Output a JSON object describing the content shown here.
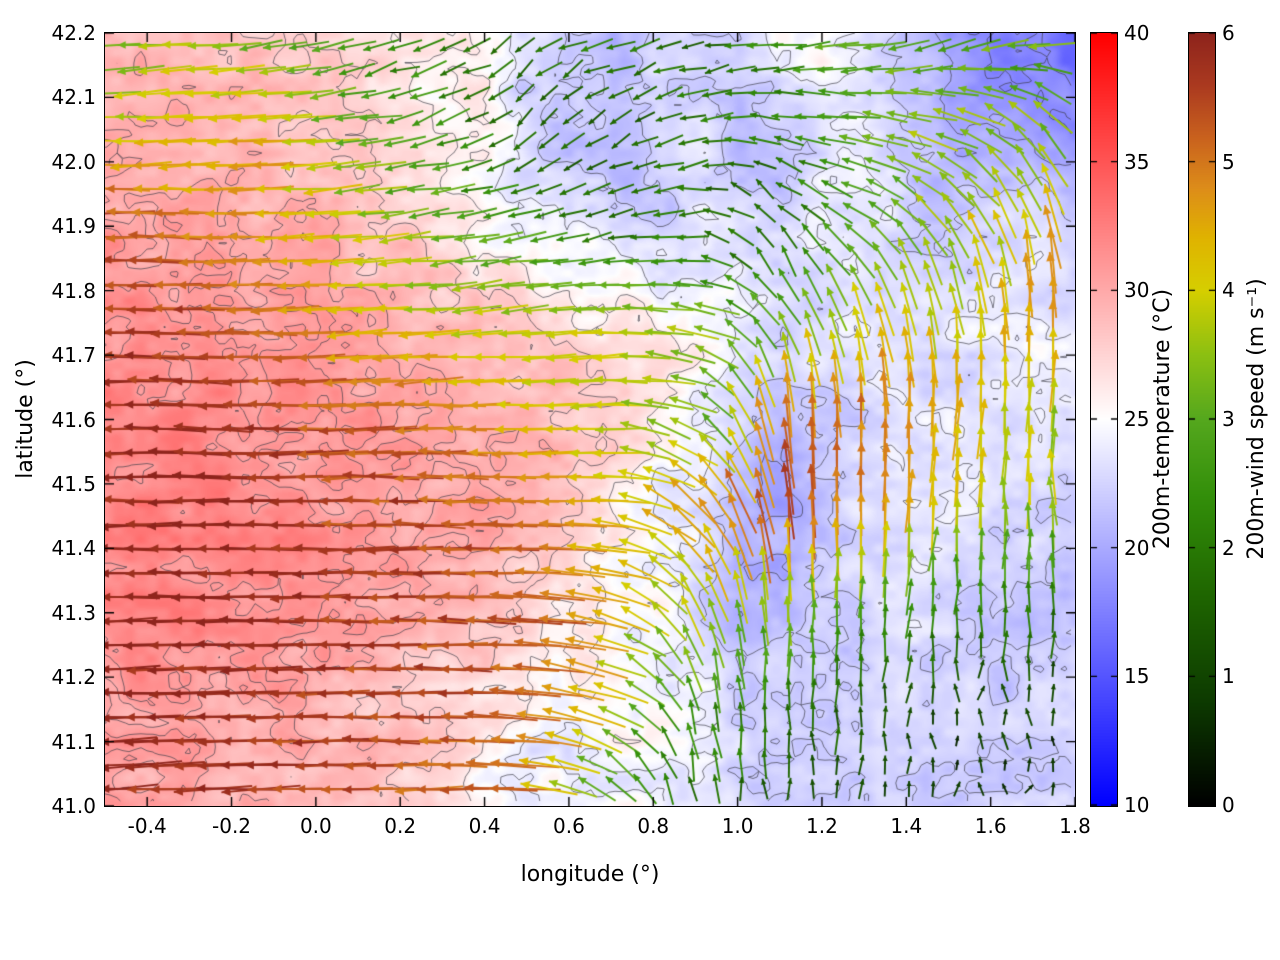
{
  "chart_data": {
    "type": "heatmap",
    "subtype": "temperature-field-with-wind-vectors-and-contours",
    "title": "",
    "xlabel": "longitude (°)",
    "ylabel": "latitude (°)",
    "xlim": [
      -0.5,
      1.8
    ],
    "ylim": [
      41.0,
      42.2
    ],
    "grid": false,
    "xtick_labels": [
      "-0.4",
      "-0.2",
      "0.0",
      "0.2",
      "0.4",
      "0.6",
      "0.8",
      "1.0",
      "1.2",
      "1.4",
      "1.6",
      "1.8"
    ],
    "ytick_labels": [
      "41.0",
      "41.1",
      "41.2",
      "41.3",
      "41.4",
      "41.5",
      "41.6",
      "41.7",
      "41.8",
      "41.9",
      "42.0",
      "42.1",
      "42.2"
    ],
    "contour_levels": [
      18,
      20,
      22,
      24,
      26,
      28,
      30,
      31
    ],
    "contour_color": "#3c3c46",
    "temperature_colorbar": {
      "label": "200m-temperature (°C)",
      "min": 10,
      "max": 40,
      "ticks": [
        "10",
        "15",
        "20",
        "25",
        "30",
        "35",
        "40"
      ],
      "colormap": [
        [
          10,
          "#0000ff"
        ],
        [
          25,
          "#ffffff"
        ],
        [
          40,
          "#ff0000"
        ]
      ]
    },
    "wind_colorbar": {
      "label": "200m-wind speed (m s⁻¹)",
      "min": 0,
      "max": 6,
      "ticks": [
        "0",
        "1",
        "2",
        "3",
        "4",
        "5",
        "6"
      ],
      "colormap": [
        [
          0,
          "#000000"
        ],
        [
          0.8,
          "#0d3a00"
        ],
        [
          1.6,
          "#1e6400"
        ],
        [
          2.4,
          "#338f0a"
        ],
        [
          3.0,
          "#55a81e"
        ],
        [
          3.5,
          "#8cc012"
        ],
        [
          4.0,
          "#d6cf00"
        ],
        [
          4.4,
          "#e0b400"
        ],
        [
          4.8,
          "#dd8d1a"
        ],
        [
          5.2,
          "#c9611e"
        ],
        [
          5.6,
          "#ab3a20"
        ],
        [
          6,
          "#8e241c"
        ]
      ]
    },
    "temperature_field": {
      "units": "°C",
      "lons": [
        -0.5,
        -0.4,
        -0.3,
        -0.2,
        -0.1,
        0.0,
        0.1,
        0.2,
        0.3,
        0.4,
        0.5,
        0.6,
        0.7,
        0.8,
        0.9,
        1.0,
        1.1,
        1.2,
        1.3,
        1.4,
        1.5,
        1.6,
        1.7,
        1.8
      ],
      "lats": [
        42.2,
        42.1,
        42.0,
        41.9,
        41.8,
        41.7,
        41.6,
        41.5,
        41.4,
        41.3,
        41.2,
        41.1,
        41.0
      ],
      "values": [
        [
          29,
          29,
          29,
          29,
          28.5,
          28,
          27.5,
          27,
          26.5,
          26,
          23,
          21.5,
          21,
          23.5,
          22.5,
          22,
          24.5,
          25,
          23.5,
          22.5,
          19.5,
          18,
          17,
          16.5
        ],
        [
          29,
          29,
          29,
          29,
          28.5,
          28,
          27.5,
          26.5,
          26,
          25.5,
          22.5,
          21,
          21.5,
          23,
          22.5,
          21,
          23.5,
          24,
          23,
          21,
          20,
          19.5,
          18.5,
          18
        ],
        [
          29.5,
          29.5,
          29.5,
          29,
          29,
          28.5,
          27.5,
          27,
          26,
          25.5,
          23,
          21.5,
          21.5,
          22,
          23,
          21.5,
          21,
          23.5,
          24,
          22,
          21,
          20.5,
          20,
          19.5
        ],
        [
          30.5,
          30.5,
          30.5,
          30,
          30,
          29.5,
          28.5,
          28,
          27,
          26,
          25,
          24,
          23,
          22.5,
          23,
          23.5,
          23,
          23.5,
          24,
          22.5,
          22,
          22.5,
          23,
          22.5
        ],
        [
          31,
          31,
          31,
          30.5,
          30.5,
          30,
          29.5,
          29,
          28,
          27.5,
          26.5,
          25.5,
          25,
          24.5,
          24,
          24,
          23.5,
          23,
          23,
          23,
          23.5,
          24,
          23.5,
          23
        ],
        [
          31.5,
          31.5,
          31.5,
          31,
          31,
          31,
          30.5,
          30,
          29,
          29,
          29,
          28.5,
          27.5,
          26.5,
          25.5,
          24,
          22.5,
          23,
          24,
          23.5,
          23,
          23,
          23.5,
          24
        ],
        [
          32,
          32,
          31.5,
          31.5,
          31.5,
          31,
          31,
          30.5,
          30,
          29.5,
          29,
          28.5,
          28,
          26.5,
          24.5,
          22.5,
          21.5,
          22,
          23,
          23.5,
          24,
          23.5,
          23,
          23
        ],
        [
          32,
          32,
          32,
          31.5,
          31.5,
          31,
          31,
          30.5,
          30.5,
          30,
          29,
          28,
          26.5,
          25,
          23.5,
          21.5,
          20.5,
          21.5,
          23,
          24,
          23.5,
          23,
          22.5,
          22.5
        ],
        [
          32,
          32,
          31.5,
          31.5,
          31.5,
          31,
          30.5,
          30.5,
          30,
          29.5,
          28.5,
          27.5,
          26,
          24.5,
          23,
          21,
          20.5,
          22,
          23,
          23,
          23,
          22.5,
          22.5,
          22
        ],
        [
          31.5,
          31.5,
          31.5,
          31,
          31,
          30.5,
          30,
          29.5,
          29,
          28.5,
          27.5,
          26.5,
          25.5,
          24.5,
          23,
          21,
          20,
          21.5,
          22.5,
          23,
          22.5,
          22,
          22,
          22
        ],
        [
          31,
          31,
          31,
          30.5,
          30.5,
          30,
          29,
          28.5,
          28,
          27.5,
          26.5,
          26,
          25.5,
          24.5,
          23.5,
          22.5,
          22,
          22.5,
          23,
          23,
          22.5,
          22,
          22,
          22.5
        ],
        [
          30.5,
          30.5,
          30.5,
          30,
          30,
          29.5,
          29,
          28.5,
          27.5,
          26.5,
          24.5,
          24,
          25,
          24.5,
          23.5,
          22.5,
          22.5,
          22.5,
          23,
          22.5,
          22.5,
          22.5,
          22.5,
          22.5
        ],
        [
          30,
          30,
          30,
          29.5,
          29.5,
          28.5,
          28,
          27.5,
          26,
          25,
          24,
          24,
          24.5,
          24,
          23.5,
          22.5,
          22.5,
          22.5,
          22.5,
          22.5,
          22.5,
          22.5,
          22.5,
          22.5
        ]
      ]
    },
    "wind_field": {
      "units": "m s⁻¹",
      "lons": [
        -0.5,
        -0.3,
        -0.1,
        0.1,
        0.3,
        0.5,
        0.7,
        0.9,
        1.1,
        1.3,
        1.5,
        1.8
      ],
      "lats": [
        42.2,
        42.05,
        41.9,
        41.75,
        41.6,
        41.45,
        41.3,
        41.15,
        41.0
      ],
      "u": [
        [
          -3.2,
          -3.8,
          -3.0,
          -2.5,
          -1.8,
          -1.5,
          -2.2,
          -1.5,
          -2.5,
          -3.0,
          -2.8,
          -3.5
        ],
        [
          -4.0,
          -4.2,
          -4.5,
          -3.2,
          -2.5,
          -1.0,
          -1.2,
          -2.0,
          -2.0,
          -3.0,
          -3.5,
          -2.0
        ],
        [
          -5.5,
          -5.0,
          -4.6,
          -3.8,
          -3.0,
          -2.5,
          -1.5,
          -2.0,
          -1.0,
          -2.5,
          -2.0,
          -1.0
        ],
        [
          -5.8,
          -5.6,
          -5.2,
          -4.5,
          -4.0,
          -3.8,
          -4.0,
          -3.5,
          -1.5,
          -1.0,
          -0.5,
          0.5
        ],
        [
          -6.0,
          -5.8,
          -5.6,
          -5.2,
          -5.0,
          -4.3,
          -4.0,
          -3.0,
          -0.5,
          0.0,
          0.2,
          0.3
        ],
        [
          -6.0,
          -6.0,
          -5.8,
          -5.5,
          -5.5,
          -5.2,
          -4.3,
          -3.5,
          -0.5,
          0.0,
          0.3,
          -0.5
        ],
        [
          -6.0,
          -6.0,
          -5.8,
          -5.6,
          -5.5,
          -5.3,
          -4.5,
          -1.5,
          0.0,
          0.3,
          0.2,
          0.0
        ],
        [
          -6.0,
          -5.9,
          -5.8,
          -5.6,
          -5.4,
          -5.2,
          -4.0,
          -0.5,
          0.0,
          0.0,
          0.0,
          0.0
        ],
        [
          -5.8,
          -5.8,
          -5.6,
          -5.4,
          -5.2,
          -5.0,
          -1.5,
          -0.3,
          0.0,
          0.0,
          0.0,
          0.0
        ]
      ],
      "v": [
        [
          -0.3,
          -0.2,
          -0.5,
          -0.6,
          -0.8,
          -1.0,
          -0.5,
          -0.5,
          -0.3,
          -0.5,
          -0.8,
          -0.5
        ],
        [
          0.0,
          -0.2,
          -0.3,
          -0.5,
          -0.8,
          -1.2,
          -0.8,
          -0.5,
          0.5,
          0.5,
          1.0,
          3.0
        ],
        [
          0.0,
          0.0,
          -0.2,
          -0.3,
          -0.5,
          -0.5,
          -0.5,
          0.0,
          1.5,
          1.5,
          3.0,
          4.5
        ],
        [
          0.2,
          0.0,
          0.0,
          -0.2,
          -0.3,
          -0.4,
          0.0,
          0.5,
          2.5,
          4.0,
          4.0,
          5.0
        ],
        [
          0.0,
          0.2,
          0.0,
          -0.2,
          0.0,
          -0.2,
          -0.3,
          1.5,
          5.0,
          5.0,
          4.5,
          3.5
        ],
        [
          0.0,
          0.0,
          0.0,
          0.0,
          0.2,
          0.0,
          0.3,
          3.5,
          5.5,
          5.0,
          4.0,
          3.5
        ],
        [
          -0.2,
          0.0,
          0.0,
          0.0,
          0.0,
          0.2,
          1.0,
          3.5,
          3.5,
          2.5,
          2.0,
          1.8
        ],
        [
          -0.3,
          -0.2,
          0.0,
          0.0,
          0.0,
          0.3,
          1.5,
          2.5,
          2.0,
          1.5,
          1.0,
          0.8
        ],
        [
          -0.3,
          -0.2,
          -0.2,
          0.0,
          0.0,
          0.3,
          2.0,
          1.8,
          1.3,
          1.0,
          0.7,
          0.6
        ]
      ]
    }
  }
}
